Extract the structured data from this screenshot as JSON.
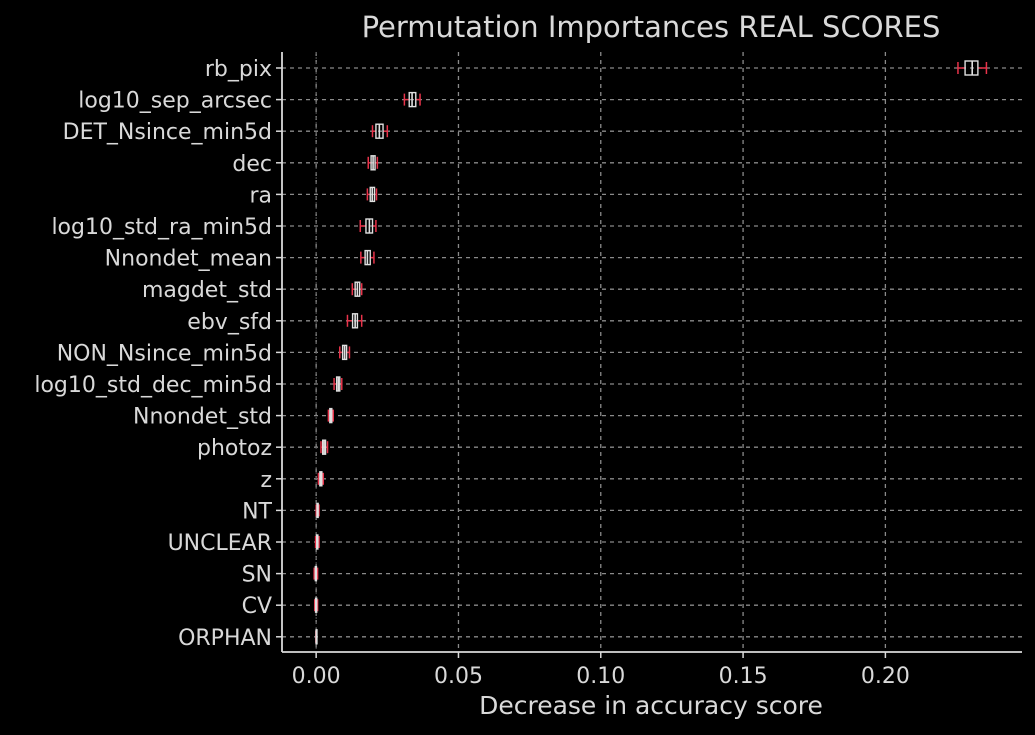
{
  "chart_data": {
    "type": "boxplot",
    "title": "Permutation Importances REAL SCORES",
    "xlabel": "Decrease in accuracy score",
    "ylabel": "",
    "xlim": [
      -0.012,
      0.248
    ],
    "xticks": [
      {
        "value": 0.0,
        "label": "0.00"
      },
      {
        "value": 0.05,
        "label": "0.05"
      },
      {
        "value": 0.1,
        "label": "0.10"
      },
      {
        "value": 0.15,
        "label": "0.15"
      },
      {
        "value": 0.2,
        "label": "0.20"
      }
    ],
    "grid": true,
    "zero_line": true,
    "colors": {
      "background": "#000000",
      "text": "#d9d9d9",
      "axis": "#d9d9d9",
      "grid": "#8a8a8a",
      "box": "#e0e0e0",
      "median": "#e0e0e0",
      "whisker": "#e8334a"
    },
    "features": [
      {
        "name": "rb_pix",
        "whislo": 0.2255,
        "q1": 0.228,
        "median": 0.2305,
        "q3": 0.2325,
        "whishi": 0.2355
      },
      {
        "name": "log10_sep_arcsec",
        "whislo": 0.031,
        "q1": 0.0327,
        "median": 0.0337,
        "q3": 0.035,
        "whishi": 0.0365
      },
      {
        "name": "DET_Nsince_min5d",
        "whislo": 0.0198,
        "q1": 0.021,
        "median": 0.0222,
        "q3": 0.0235,
        "whishi": 0.025
      },
      {
        "name": "dec",
        "whislo": 0.0183,
        "q1": 0.0193,
        "median": 0.02,
        "q3": 0.0207,
        "whishi": 0.0215
      },
      {
        "name": "ra",
        "whislo": 0.018,
        "q1": 0.019,
        "median": 0.0197,
        "q3": 0.0205,
        "whishi": 0.0212
      },
      {
        "name": "log10_std_ra_min5d",
        "whislo": 0.0155,
        "q1": 0.0175,
        "median": 0.0187,
        "q3": 0.0198,
        "whishi": 0.021
      },
      {
        "name": "Nnondet_mean",
        "whislo": 0.0157,
        "q1": 0.0172,
        "median": 0.018,
        "q3": 0.019,
        "whishi": 0.0203
      },
      {
        "name": "magdet_std",
        "whislo": 0.0127,
        "q1": 0.0137,
        "median": 0.0145,
        "q3": 0.0153,
        "whishi": 0.016
      },
      {
        "name": "ebv_sfd",
        "whislo": 0.011,
        "q1": 0.0128,
        "median": 0.0137,
        "q3": 0.0145,
        "whishi": 0.016
      },
      {
        "name": "NON_Nsince_min5d",
        "whislo": 0.0083,
        "q1": 0.0093,
        "median": 0.01,
        "q3": 0.0107,
        "whishi": 0.0117
      },
      {
        "name": "log10_std_dec_min5d",
        "whislo": 0.0063,
        "q1": 0.0072,
        "median": 0.0078,
        "q3": 0.0083,
        "whishi": 0.009
      },
      {
        "name": "Nnondet_std",
        "whislo": 0.0043,
        "q1": 0.0048,
        "median": 0.0051,
        "q3": 0.0055,
        "whishi": 0.006
      },
      {
        "name": "photoz",
        "whislo": 0.0017,
        "q1": 0.0023,
        "median": 0.0028,
        "q3": 0.0033,
        "whishi": 0.004
      },
      {
        "name": "z",
        "whislo": 0.0008,
        "q1": 0.0013,
        "median": 0.0017,
        "q3": 0.002,
        "whishi": 0.0025
      },
      {
        "name": "NT",
        "whislo": 0.0,
        "q1": 0.0003,
        "median": 0.0005,
        "q3": 0.0007,
        "whishi": 0.001
      },
      {
        "name": "UNCLEAR",
        "whislo": -0.0002,
        "q1": 0.0002,
        "median": 0.0004,
        "q3": 0.0006,
        "whishi": 0.001
      },
      {
        "name": "SN",
        "whislo": -0.0007,
        "q1": -0.0003,
        "median": -0.0001,
        "q3": 0.0001,
        "whishi": 0.0005
      },
      {
        "name": "CV",
        "whislo": -0.0005,
        "q1": -0.0002,
        "median": 0.0,
        "q3": 0.0002,
        "whishi": 0.0005
      },
      {
        "name": "ORPHAN",
        "whislo": -0.0001,
        "q1": 0.0,
        "median": 0.0,
        "q3": 0.0,
        "whishi": 0.0001
      }
    ]
  }
}
